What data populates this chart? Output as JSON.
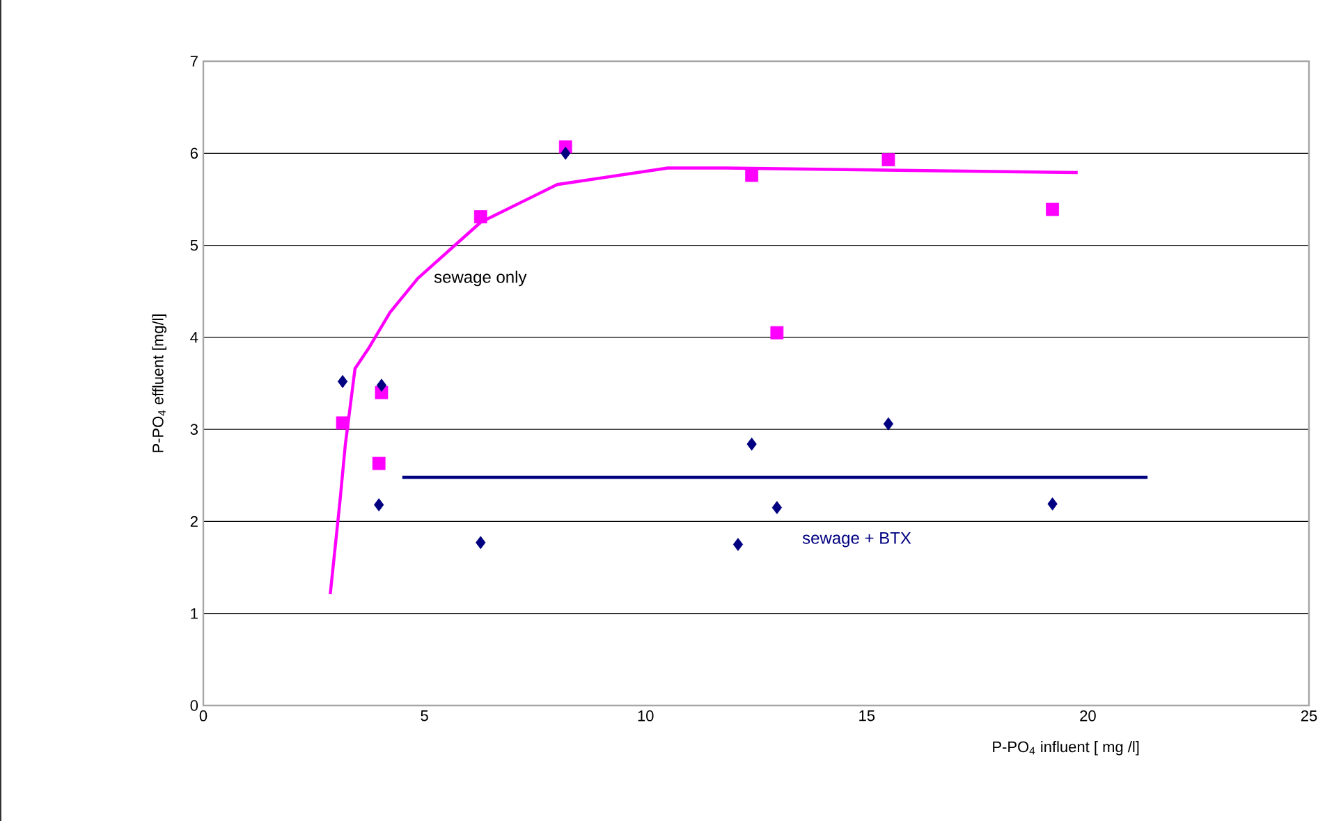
{
  "chart_data": {
    "type": "scatter",
    "xlabel": "P-PO$_{4}$ influent [ mg /l]",
    "ylabel": "P-PO$_{4}$ effluent [mg/l]",
    "xlim": [
      0,
      25
    ],
    "ylim": [
      0,
      7
    ],
    "xticks": [
      0,
      5,
      10,
      15,
      20,
      25
    ],
    "yticks": [
      0,
      1,
      2,
      3,
      4,
      5,
      6,
      7
    ],
    "grid": "y",
    "series": [
      {
        "marker": "square",
        "color": "#ff00ff",
        "x": [
          3.15,
          4.03,
          3.97,
          6.27,
          8.19,
          12.4,
          12.97,
          15.49,
          19.2
        ],
        "values": [
          3.07,
          3.4,
          2.63,
          5.31,
          6.07,
          5.76,
          4.05,
          5.93,
          5.39
        ]
      },
      {
        "marker": "diamond",
        "color": "#000080",
        "x": [
          3.15,
          4.03,
          3.97,
          6.27,
          8.19,
          12.4,
          12.09,
          12.97,
          15.49,
          19.2
        ],
        "values": [
          3.52,
          3.48,
          2.18,
          1.77,
          6.0,
          2.84,
          1.75,
          2.15,
          3.06,
          2.19
        ]
      },
      {
        "type": "line",
        "name": "sewage only",
        "marker": "none",
        "color": "#ff00ff",
        "x": [
          2.87,
          3.09,
          3.21,
          3.43,
          3.75,
          4.22,
          4.85,
          6.27,
          8.0,
          10.5,
          11.8,
          19.77
        ],
        "values": [
          1.21,
          2.22,
          2.83,
          3.66,
          3.89,
          4.27,
          4.64,
          5.25,
          5.66,
          5.84,
          5.84,
          5.79
        ]
      },
      {
        "type": "line",
        "name": "sewage + BTX",
        "marker": "none",
        "color": "#000080",
        "x": [
          4.5,
          21.35
        ],
        "values": [
          2.48,
          2.48
        ]
      }
    ]
  }
}
